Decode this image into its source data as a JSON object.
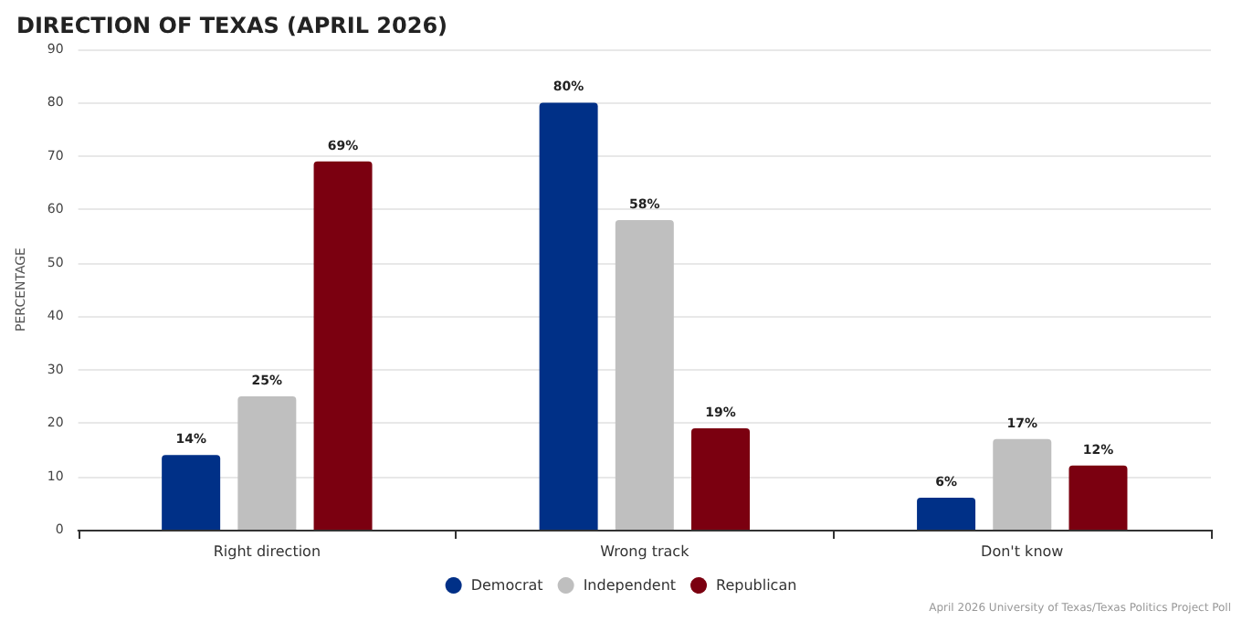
{
  "chart_data": {
    "type": "bar",
    "title": "DIRECTION OF TEXAS (APRIL 2026)",
    "ylabel": "PERCENTAGE",
    "categories": [
      "Right direction",
      "Wrong track",
      "Don't know"
    ],
    "series": [
      {
        "name": "Democrat",
        "color": "#003087",
        "values": [
          14,
          80,
          6
        ],
        "value_labels": [
          "14%",
          "80%",
          "6%"
        ]
      },
      {
        "name": "Independent",
        "color": "#bfbfbf",
        "values": [
          25,
          58,
          17
        ],
        "value_labels": [
          "25%",
          "58%",
          "17%"
        ]
      },
      {
        "name": "Republican",
        "color": "#7b0010",
        "values": [
          69,
          19,
          12
        ],
        "value_labels": [
          "69%",
          "19%",
          "12%"
        ]
      }
    ],
    "ylim": [
      0,
      90
    ],
    "yticks": [
      0,
      10,
      20,
      30,
      40,
      50,
      60,
      70,
      80,
      90
    ],
    "grid": "y",
    "legend": "bottom",
    "annotations": [
      "April 2026 University of Texas/Texas Politics Project Poll"
    ]
  }
}
